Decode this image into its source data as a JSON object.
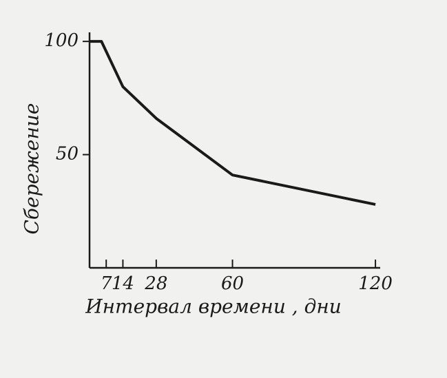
{
  "chart_data": {
    "type": "line",
    "x_label": "Интервал времени , дни",
    "y_label": "Сбережение",
    "series": [
      {
        "name": "Сбережение",
        "color": "#1a1a1a",
        "x": [
          0,
          5,
          14,
          28,
          60,
          120
        ],
        "values": [
          100,
          100,
          80,
          66,
          41,
          28
        ]
      }
    ],
    "xlim": [
      0,
      122
    ],
    "xticks": [
      7,
      14,
      28,
      60,
      120
    ],
    "ylim": [
      0,
      104
    ],
    "yticks": [
      50,
      100
    ],
    "grid": false
  }
}
